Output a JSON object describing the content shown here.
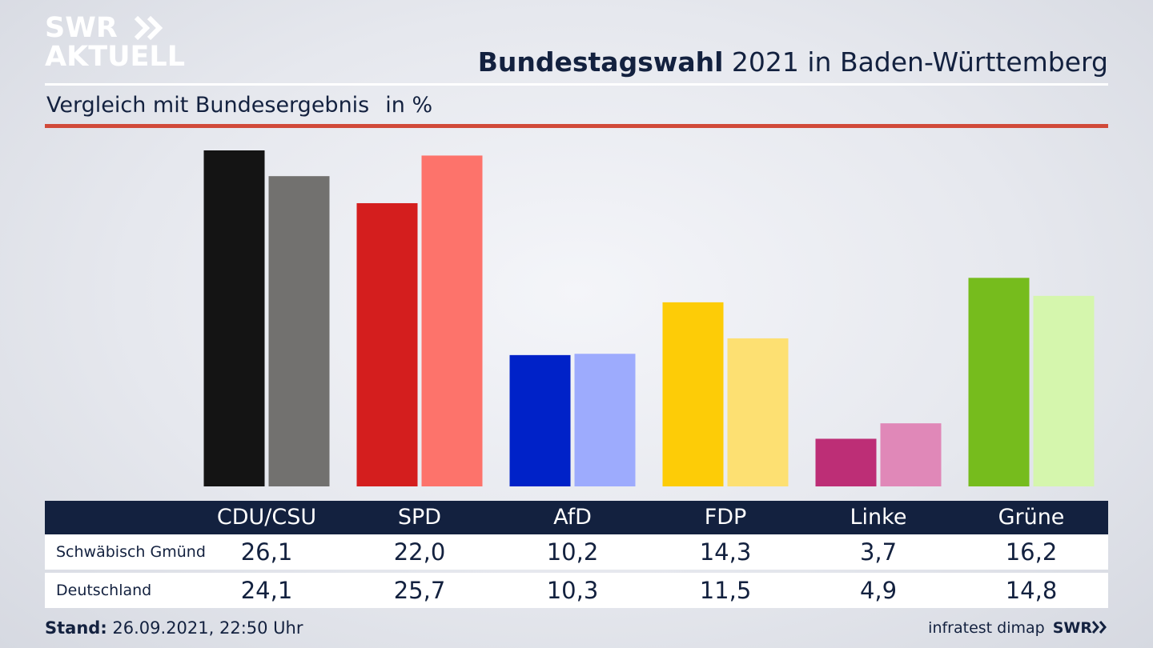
{
  "logo": {
    "line1": "SWR",
    "line2": "AKTUELL"
  },
  "header": {
    "title_bold": "Bundestagswahl",
    "title_rest": " 2021 in Baden-Württemberg",
    "subtitle": "Vergleich mit Bundesergebnis",
    "unit": "in %"
  },
  "chart_data": {
    "type": "bar",
    "categories": [
      "CDU/CSU",
      "SPD",
      "AfD",
      "FDP",
      "Linke",
      "Grüne"
    ],
    "series": [
      {
        "name": "Schwäbisch Gmünd",
        "values": [
          26.1,
          22.0,
          10.2,
          14.3,
          3.7,
          16.2
        ],
        "colors": [
          "#141414",
          "#d41e1e",
          "#0022c8",
          "#fdcc07",
          "#bd2e76",
          "#76bc1d"
        ]
      },
      {
        "name": "Deutschland",
        "values": [
          24.1,
          25.7,
          10.3,
          11.5,
          4.9,
          14.8
        ],
        "colors": [
          "#72716f",
          "#fd736b",
          "#9dabfd",
          "#fde072",
          "#e088b8",
          "#d5f6ad"
        ]
      }
    ],
    "ylim": [
      0,
      26.1
    ],
    "grid": false,
    "legend": "table-below"
  },
  "table": {
    "headers": [
      "CDU/CSU",
      "SPD",
      "AfD",
      "FDP",
      "Linke",
      "Grüne"
    ],
    "rows": [
      {
        "label": "Schwäbisch Gmünd",
        "values": [
          "26,1",
          "22,0",
          "10,2",
          "14,3",
          "3,7",
          "16,2"
        ]
      },
      {
        "label": "Deutschland",
        "values": [
          "24,1",
          "25,7",
          "10,3",
          "11,5",
          "4,9",
          "14,8"
        ]
      }
    ]
  },
  "footer": {
    "stand_label": "Stand:",
    "stand_value": " 26.09.2021, 22:50 Uhr",
    "source": "infratest dimap",
    "brand": "SWR"
  }
}
